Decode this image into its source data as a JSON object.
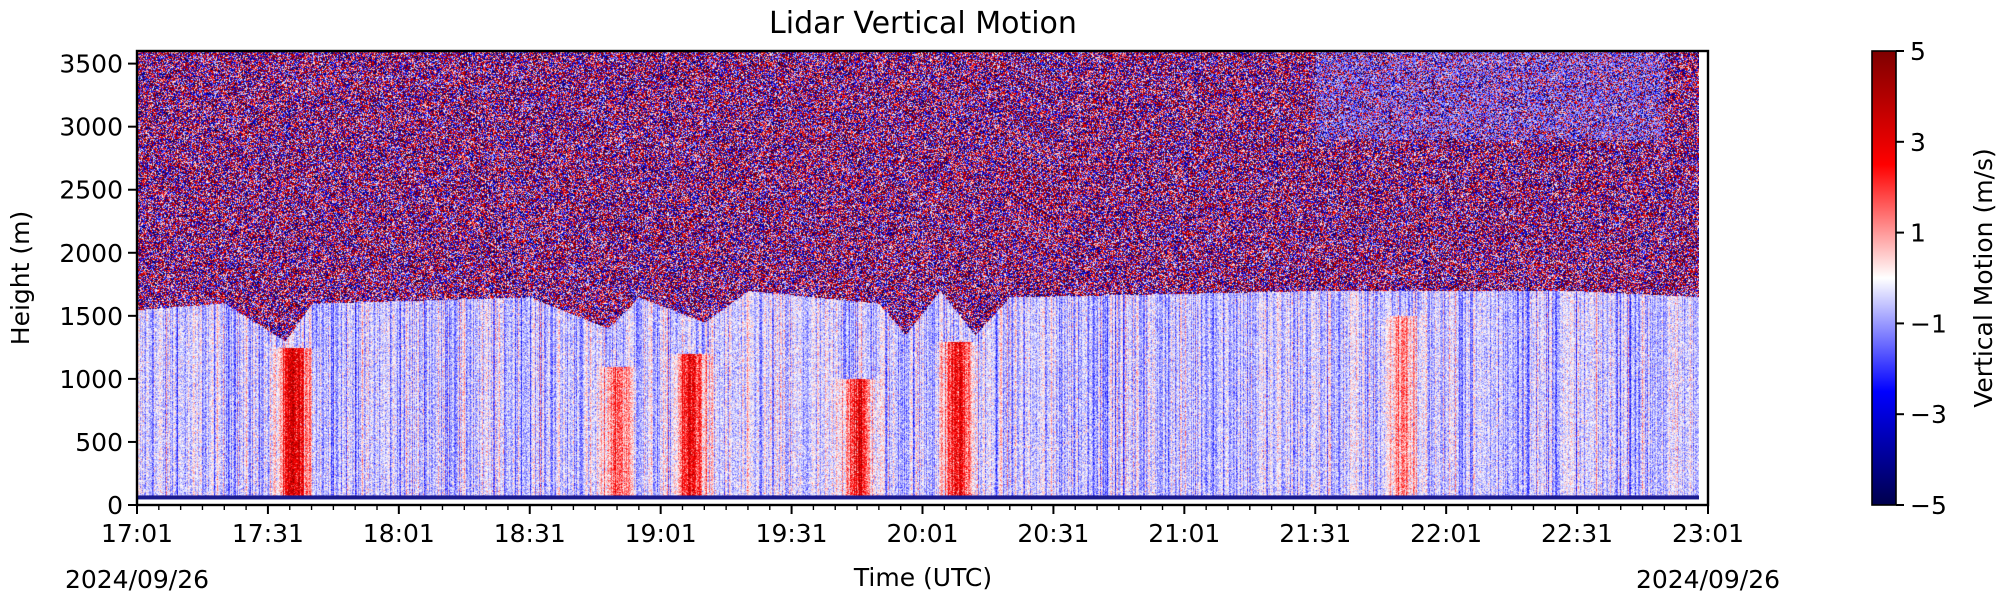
{
  "chart_data": {
    "type": "heatmap",
    "title": "Lidar Vertical Motion",
    "xlabel": "Time (UTC)",
    "ylabel": "Height (m)",
    "colorbar_label": "Vertical Motion (m/s)",
    "colormap": "seismic",
    "clim": [
      -5,
      5
    ],
    "colorbar_ticks": [
      -5,
      -3,
      -1,
      1,
      3,
      5
    ],
    "colorbar_tick_labels": [
      "−5",
      "−3",
      "−1",
      "1",
      "3",
      "5"
    ],
    "xlim": [
      "17:01",
      "23:01"
    ],
    "x_tick_labels": [
      "17:01",
      "17:31",
      "18:01",
      "18:31",
      "19:01",
      "19:31",
      "20:01",
      "20:31",
      "21:01",
      "21:31",
      "22:01",
      "22:31",
      "23:01"
    ],
    "x_date_left": "2024/09/26",
    "x_date_right": "2024/09/26",
    "ylim": [
      0,
      3600
    ],
    "y_ticks": [
      0,
      500,
      1000,
      1500,
      2000,
      2500,
      3000,
      3500
    ],
    "y_tick_labels": [
      "0",
      "500",
      "1000",
      "1500",
      "2000",
      "2500",
      "3000",
      "3500"
    ],
    "data_time_end": "22:59",
    "data_height_start": 60,
    "boundary_layer_top": [
      {
        "time": "17:01",
        "height": 1550
      },
      {
        "time": "17:21",
        "height": 1600
      },
      {
        "time": "17:35",
        "height": 1300
      },
      {
        "time": "17:41",
        "height": 1600
      },
      {
        "time": "18:31",
        "height": 1650
      },
      {
        "time": "18:49",
        "height": 1400
      },
      {
        "time": "18:56",
        "height": 1650
      },
      {
        "time": "19:11",
        "height": 1450
      },
      {
        "time": "19:21",
        "height": 1700
      },
      {
        "time": "19:51",
        "height": 1600
      },
      {
        "time": "19:57",
        "height": 1350
      },
      {
        "time": "20:05",
        "height": 1700
      },
      {
        "time": "20:13",
        "height": 1350
      },
      {
        "time": "20:21",
        "height": 1650
      },
      {
        "time": "21:31",
        "height": 1700
      },
      {
        "time": "22:31",
        "height": 1700
      },
      {
        "time": "23:00",
        "height": 1650
      }
    ],
    "updraft_events": [
      {
        "time": "17:37",
        "peak_height": 1250,
        "velocity": 4
      },
      {
        "time": "18:51",
        "peak_height": 1100,
        "velocity": 2.5
      },
      {
        "time": "19:08",
        "peak_height": 1200,
        "velocity": 3.5
      },
      {
        "time": "19:46",
        "peak_height": 1000,
        "velocity": 3.5
      },
      {
        "time": "20:09",
        "peak_height": 1300,
        "velocity": 3.5
      },
      {
        "time": "21:51",
        "peak_height": 1500,
        "velocity": 2
      }
    ]
  }
}
